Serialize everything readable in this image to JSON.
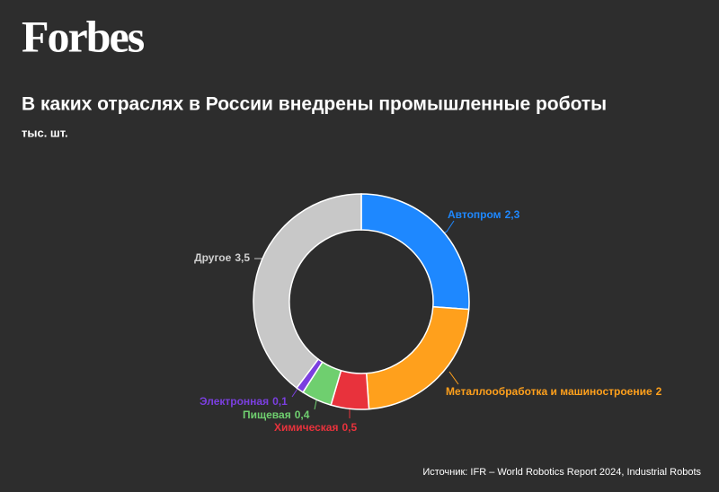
{
  "logo": "Forbes",
  "chart_data": {
    "type": "donut",
    "title": "В каких отраслях в России внедрены промышленные роботы",
    "subtitle": "тыс. шт.",
    "categories": [
      "Автопром",
      "Металлообработка и машиностроение",
      "Химическая",
      "Пищевая",
      "Электронная",
      "Другое"
    ],
    "values": [
      2.3,
      2,
      0.5,
      0.4,
      0.1,
      3.5
    ],
    "value_labels": [
      "2,3",
      "2",
      "0,5",
      "0,4",
      "0,1",
      "3,5"
    ],
    "colors": [
      "#1e88ff",
      "#ffa01c",
      "#e8323c",
      "#6fcf6f",
      "#7b3fe0",
      "#c8c8c8"
    ],
    "source": "Источник: IFR – World Robotics Report 2024, Industrial Robots"
  }
}
